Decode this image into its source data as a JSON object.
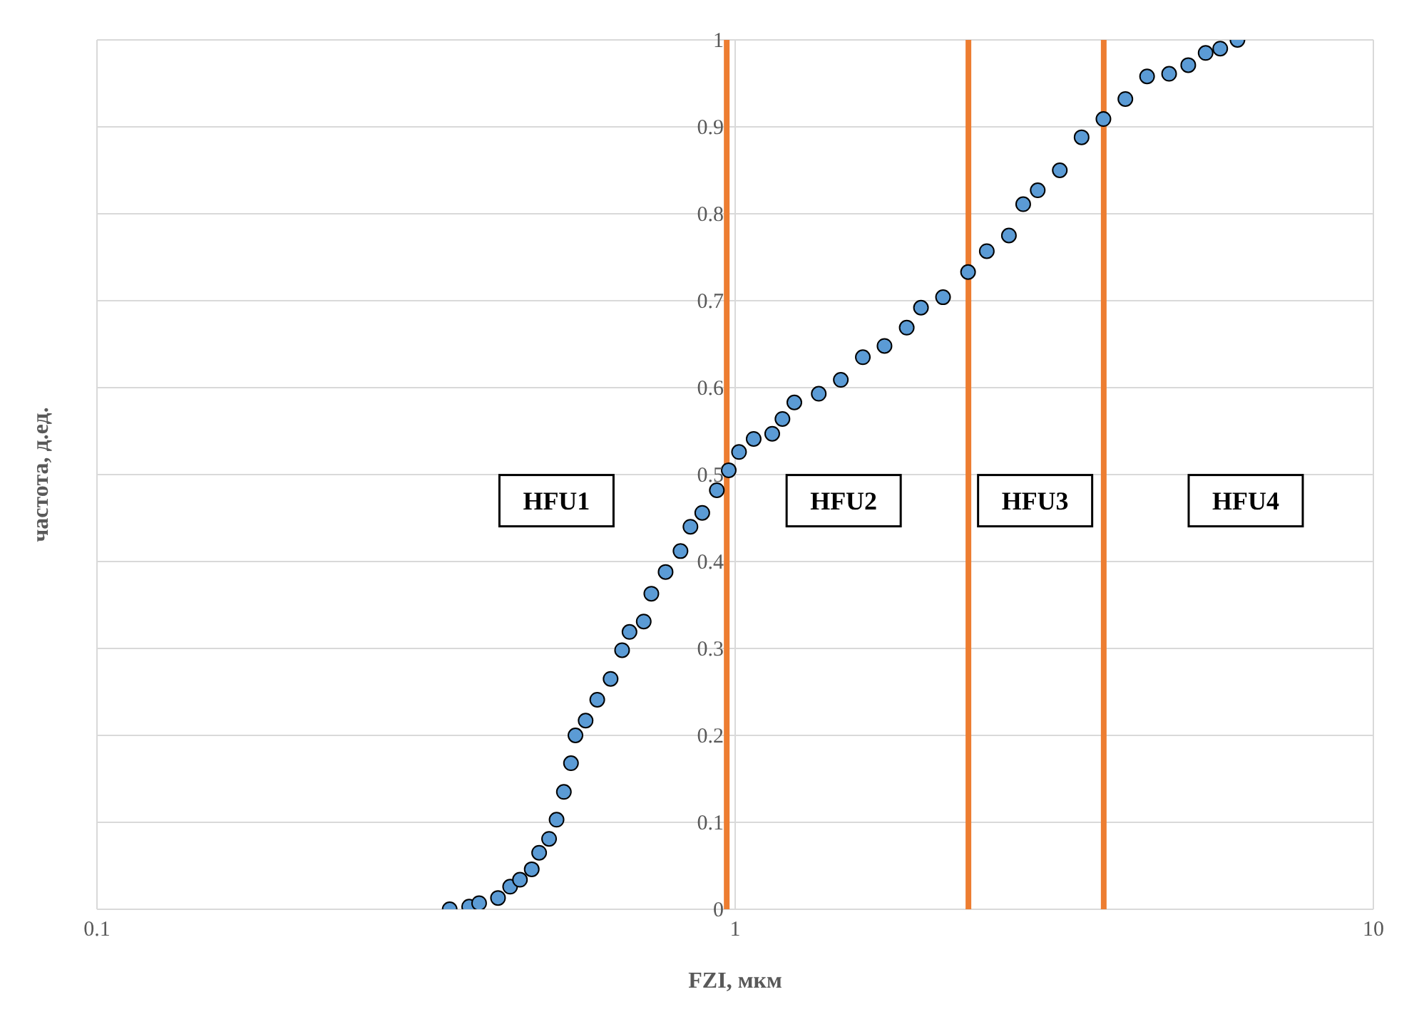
{
  "chart_data": {
    "type": "scatter",
    "xlabel": "FZI, мкм",
    "ylabel": "частота,  д.ед.",
    "log": "x",
    "grid": true,
    "marker": "circle",
    "legend": false,
    "xlim": [
      0.1,
      10
    ],
    "xticks": [
      0.1,
      1,
      10
    ],
    "ylim": [
      0,
      1
    ],
    "yticks": [
      0,
      0.1,
      0.2,
      0.3,
      0.4,
      0.5,
      0.6,
      0.7,
      0.8,
      0.9,
      1
    ],
    "series": [
      {
        "color": "#5b9bd5",
        "x": [
          0.357,
          0.383,
          0.397,
          0.425,
          0.444,
          0.46,
          0.48,
          0.493,
          0.511,
          0.525,
          0.539,
          0.553,
          0.562,
          0.583,
          0.608,
          0.638,
          0.665,
          0.683,
          0.719,
          0.739,
          0.778,
          0.821,
          0.851,
          0.888,
          0.936,
          0.977,
          1.014,
          1.069,
          1.143,
          1.186,
          1.238,
          1.352,
          1.464,
          1.585,
          1.714,
          1.857,
          1.955,
          2.117,
          2.317,
          2.479,
          2.685,
          2.827,
          2.979,
          3.226,
          3.49,
          3.776,
          4.087,
          4.42,
          4.786,
          5.128,
          5.46,
          5.755,
          6.124
        ],
        "values": [
          0,
          0.003,
          0.007,
          0.013,
          0.026,
          0.034,
          0.046,
          0.065,
          0.081,
          0.103,
          0.135,
          0.168,
          0.2,
          0.217,
          0.241,
          0.265,
          0.298,
          0.319,
          0.331,
          0.363,
          0.388,
          0.412,
          0.44,
          0.456,
          0.482,
          0.505,
          0.526,
          0.541,
          0.547,
          0.564,
          0.583,
          0.593,
          0.609,
          0.635,
          0.648,
          0.669,
          0.692,
          0.704,
          0.733,
          0.757,
          0.775,
          0.811,
          0.827,
          0.85,
          0.888,
          0.909,
          0.932,
          0.958,
          0.961,
          0.971,
          0.985,
          0.99,
          1.0
        ]
      }
    ],
    "ref_lines": [
      {
        "axis": "x",
        "value": 0.97,
        "color": "#ed7d31"
      },
      {
        "axis": "x",
        "value": 2.32,
        "color": "#ed7d31"
      },
      {
        "axis": "x",
        "value": 3.78,
        "color": "#ed7d31"
      }
    ],
    "annotations": [
      "HFU1",
      "HFU2",
      "HFU3",
      "HFU4"
    ]
  }
}
